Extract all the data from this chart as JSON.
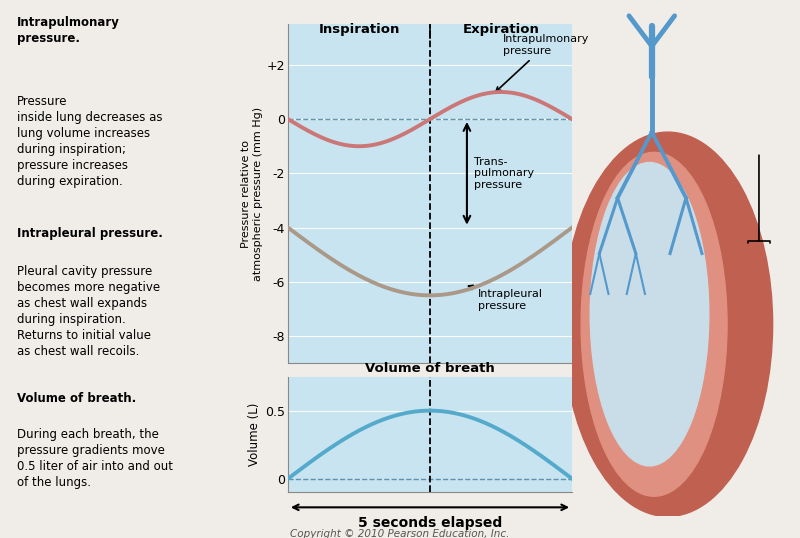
{
  "fig_width": 8.0,
  "fig_height": 5.38,
  "fig_bg": "#f0ede8",
  "copyright": "Copyright © 2010 Pearson Education, Inc.",
  "chart_bg": "#c8e4f0",
  "intra_pulm_color": "#cc7777",
  "intra_pleur_color": "#aa9988",
  "volume_color": "#55aacc",
  "box1_bg": "#e8a0a0",
  "box2_bg": "#c8c8b8",
  "box3_bg": "#7ec8d8",
  "box1_title": "Intrapulmonary\npressure.",
  "box1_text": "Pressure\ninside lung decreases as\nlung volume increases\nduring inspiration;\npressure increases\nduring expiration.",
  "box2_title": "Intrapleural pressure.",
  "box2_text": "Pleural cavity pressure\nbecomes more negative\nas chest wall expands\nduring inspiration.\nReturns to initial value\nas chest wall recoils.",
  "box3_title": "Volume of breath.",
  "box3_text": "During each breath, the\npressure gradients move\n0.5 liter of air into and out\nof the lungs.",
  "pressure_ylabel": "Pressure relative to\natmospheric pressure (mm Hg)",
  "volume_ylabel": "Volume (L)",
  "volume_title": "Volume of breath",
  "seconds_label": "5 seconds elapsed",
  "inspiration_label": "Inspiration",
  "expiration_label": "Expiration",
  "intrapulm_ann": "Intrapulmonary\npressure",
  "intrapleur_ann": "Intrapleural\npressure",
  "transpulm_ann": "Trans-\npulmonary\npressure",
  "pressure_yticks": [
    2,
    0,
    -2,
    -4,
    -6,
    -8
  ],
  "pressure_yticklabels": [
    "+2",
    "0",
    "-2",
    "-4",
    "-6",
    "-8"
  ],
  "volume_yticks": [
    0,
    0.5
  ],
  "volume_yticklabels": [
    "0",
    "0.5"
  ]
}
